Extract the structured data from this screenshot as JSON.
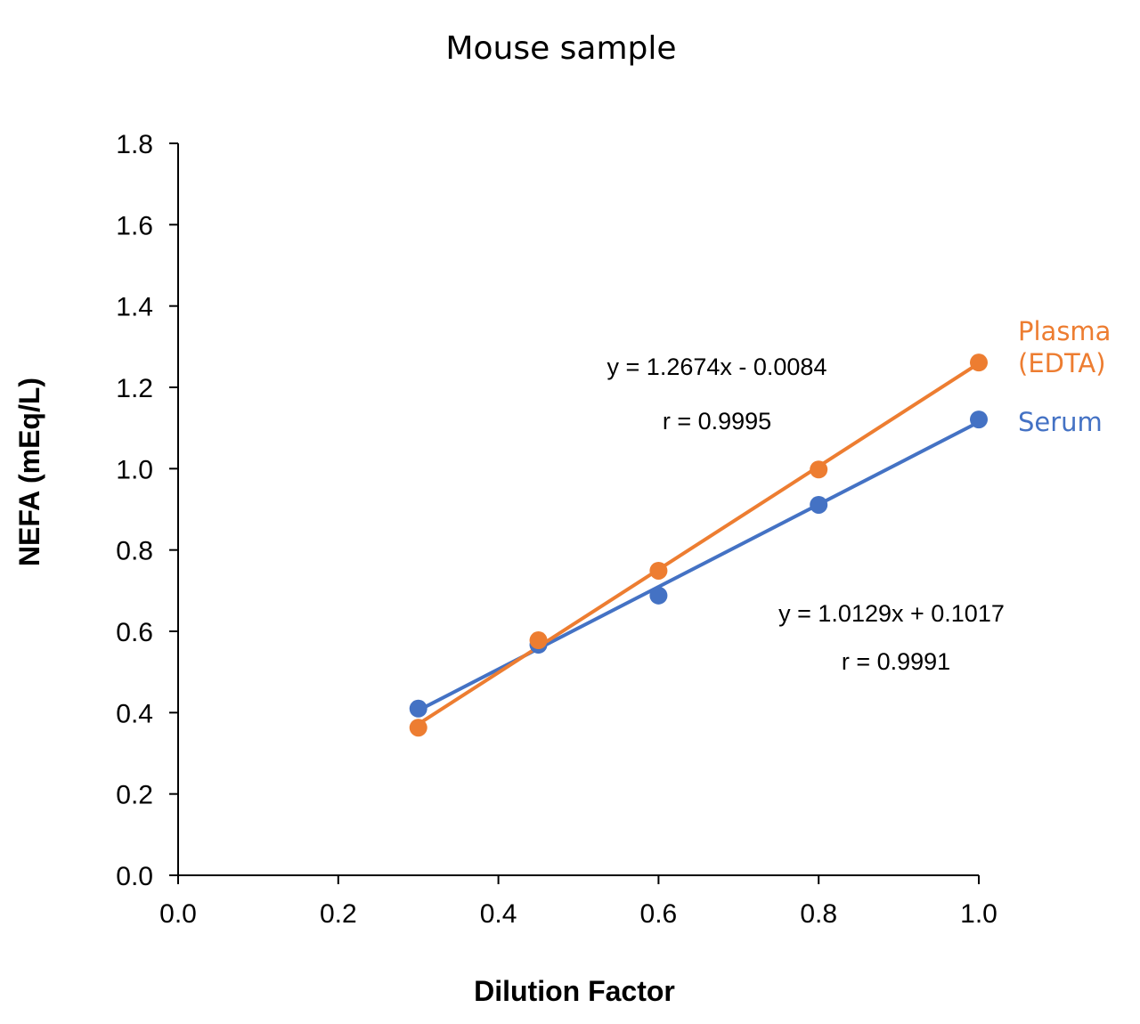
{
  "chart_data": {
    "type": "scatter",
    "title": "Mouse sample",
    "xlabel": "Dilution Factor",
    "ylabel": "NEFA (mEq/L)",
    "xlim": [
      0,
      1.0
    ],
    "ylim": [
      0,
      1.8
    ],
    "xticks": [
      "0.0",
      "0.2",
      "0.4",
      "0.6",
      "0.8",
      "1.0"
    ],
    "yticks": [
      "0.0",
      "0.2",
      "0.4",
      "0.6",
      "0.8",
      "1.0",
      "1.2",
      "1.4",
      "1.6",
      "1.8"
    ],
    "grid": false,
    "legend_placement": "right, inline labels",
    "series": [
      {
        "name": "Serum",
        "color": "#4472C4",
        "x": [
          0.3,
          0.45,
          0.6,
          0.8,
          1.0
        ],
        "y": [
          0.41,
          0.567,
          0.688,
          0.911,
          1.121
        ],
        "trendline": {
          "slope": 1.0129,
          "intercept": 0.1017
        },
        "equation": "y = 1.0129x + 0.1017",
        "r_label": "r = 0.9991"
      },
      {
        "name_lines": [
          "Plasma",
          "(EDTA)"
        ],
        "color": "#ED7D31",
        "x": [
          0.3,
          0.45,
          0.6,
          0.8,
          1.0
        ],
        "y": [
          0.363,
          0.578,
          0.749,
          0.998,
          1.261
        ],
        "trendline": {
          "slope": 1.2674,
          "intercept": -0.0084
        },
        "equation": "y = 1.2674x - 0.0084",
        "r_label": "r = 0.9995"
      }
    ]
  }
}
